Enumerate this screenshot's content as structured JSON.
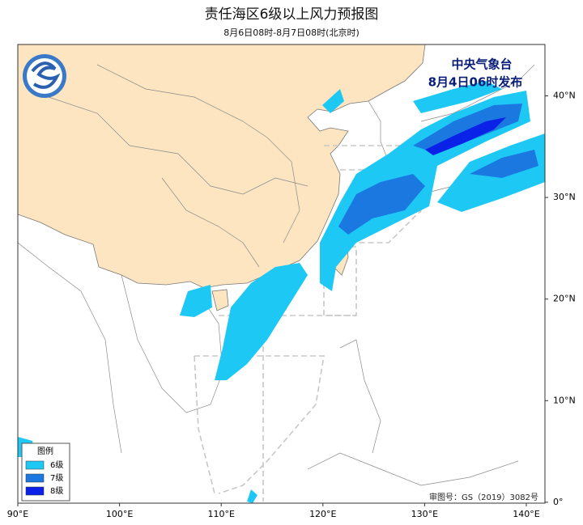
{
  "header": {
    "title": "责任海区6级以上风力预报图",
    "subtitle": "8月6日08时-8月7日08时(北京时)"
  },
  "agency": {
    "name": "中央气象台",
    "issued": "8月4日06时发布"
  },
  "axes": {
    "longitude": [
      "90°E",
      "100°E",
      "110°E",
      "120°E",
      "130°E",
      "140°E"
    ],
    "latitude": [
      "40°N",
      "30°N",
      "20°N",
      "10°N",
      "0°"
    ]
  },
  "legend": {
    "title": "图例",
    "items": [
      {
        "label": "6级",
        "color": "#1ec8f5"
      },
      {
        "label": "7级",
        "color": "#1a78e0"
      },
      {
        "label": "8级",
        "color": "#0a22e8"
      }
    ]
  },
  "approval": "审图号：GS（2019）3082号"
}
